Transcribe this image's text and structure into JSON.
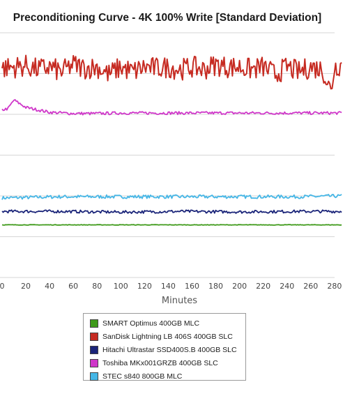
{
  "chart_data": {
    "type": "line",
    "title": "Preconditioning Curve - 4K 100% Write [Standard Deviation]",
    "xlabel": "Minutes",
    "ylabel": "",
    "xlim": [
      0,
      286
    ],
    "ylim": [
      0,
      1
    ],
    "x_ticks": [
      "0",
      "20",
      "40",
      "60",
      "80",
      "100",
      "120",
      "140",
      "160",
      "180",
      "200",
      "220",
      "240",
      "260",
      "280"
    ],
    "grid": true,
    "legend_position": "bottom",
    "series": [
      {
        "name": "SMART Optimus 400GB MLC",
        "color": "#3f9a1a",
        "x": [
          0,
          50,
          100,
          150,
          200,
          250,
          286
        ],
        "y": [
          0.215,
          0.215,
          0.215,
          0.215,
          0.215,
          0.215,
          0.215
        ]
      },
      {
        "name": "SanDisk Lightning LB 406S 400GB SLC",
        "color": "#c62b22",
        "x": [
          0,
          10,
          20,
          30,
          40,
          50,
          60,
          70,
          80,
          90,
          100,
          110,
          120,
          130,
          140,
          150,
          160,
          170,
          180,
          190,
          200,
          210,
          220,
          230,
          240,
          250,
          260,
          270,
          277,
          280,
          286
        ],
        "y": [
          0.855,
          0.86,
          0.865,
          0.85,
          0.86,
          0.84,
          0.87,
          0.855,
          0.86,
          0.83,
          0.86,
          0.84,
          0.86,
          0.855,
          0.86,
          0.85,
          0.86,
          0.85,
          0.87,
          0.86,
          0.86,
          0.85,
          0.86,
          0.83,
          0.86,
          0.84,
          0.86,
          0.85,
          0.76,
          0.86,
          0.87
        ]
      },
      {
        "name": "Hitachi Ultrastar SSD400S.B 400GB SLC",
        "color": "#1a2479",
        "x": [
          0,
          50,
          100,
          150,
          200,
          250,
          286
        ],
        "y": [
          0.27,
          0.27,
          0.267,
          0.27,
          0.268,
          0.27,
          0.27
        ]
      },
      {
        "name": "Toshiba MKx001GRZB 400GB SLC",
        "color": "#cf37c9",
        "x": [
          0,
          5,
          10,
          20,
          40,
          60,
          80,
          100,
          150,
          200,
          250,
          286
        ],
        "y": [
          0.685,
          0.69,
          0.725,
          0.695,
          0.675,
          0.67,
          0.67,
          0.672,
          0.672,
          0.672,
          0.672,
          0.672
        ]
      },
      {
        "name": "STEC s840 800GB MLC",
        "color": "#45b6e6",
        "x": [
          0,
          50,
          100,
          150,
          200,
          250,
          286
        ],
        "y": [
          0.325,
          0.33,
          0.33,
          0.33,
          0.33,
          0.33,
          0.333
        ]
      }
    ]
  }
}
